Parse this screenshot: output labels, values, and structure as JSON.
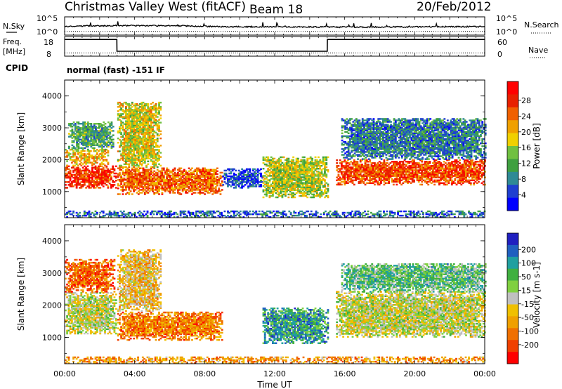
{
  "header": {
    "station": "Christmas Valley West (fitACF)",
    "beam": "Beam 18",
    "date": "20/Feb/2012"
  },
  "side_labels": {
    "nsky": "N.Sky",
    "nsearch": "N.Search",
    "freq": "Freq.",
    "freq_unit": "[MHz]",
    "nave": "Nave",
    "cpid": "CPID"
  },
  "cpid_text": "normal (fast) -151 IF",
  "noise_ticks_left": [
    "10^5",
    "10^0"
  ],
  "noise_ticks_right": [
    "10^5",
    "10^0"
  ],
  "freq_ticks_left": [
    "18",
    "8"
  ],
  "nave_ticks_right": [
    "60",
    "0"
  ],
  "chart_data": [
    {
      "type": "line",
      "name": "noise",
      "series": [
        {
          "name": "N.Sky",
          "style": "solid",
          "x": [
            0,
            3,
            6,
            9,
            12,
            15,
            18,
            21,
            24
          ],
          "values": [
            2.4,
            2.6,
            2.6,
            2.3,
            2.3,
            2.2,
            2.2,
            2.3,
            2.3
          ]
        },
        {
          "name": "N.Search",
          "style": "dotted",
          "x": [
            0,
            6,
            12,
            18,
            24
          ],
          "values": [
            1.0,
            1.0,
            1.0,
            1.0,
            1.0
          ]
        }
      ]
    },
    {
      "type": "line",
      "name": "frequency",
      "x": [
        0,
        2.98,
        2.99,
        15.0,
        15.01,
        24
      ],
      "values": [
        16.5,
        16.5,
        10.5,
        10.5,
        16.5,
        16.5
      ],
      "nave": 10,
      "ylim_left": [
        8,
        18
      ],
      "ylim_right": [
        0,
        60
      ]
    },
    {
      "type": "heatmap",
      "name": "power",
      "xlabel": "",
      "ylabel": "Slant Range [km]",
      "xlim": [
        0,
        24
      ],
      "ylim": [
        180,
        4500
      ],
      "yticks": [
        "1000",
        "2000",
        "3000",
        "4000"
      ],
      "colorbar_label": "Power [dB]",
      "colorbar_ticks": [
        "4",
        "8",
        "12",
        "16",
        "20",
        "24",
        "28"
      ],
      "colors": [
        "#0000ff",
        "#1f3fd0",
        "#2f8a95",
        "#3fa040",
        "#70c040",
        "#f0d000",
        "#f0a000",
        "#f06000",
        "#e82000",
        "#ff0000"
      ],
      "bands": [
        {
          "t0": 0.0,
          "t1": 2.9,
          "r0": 1100,
          "r1": 1800,
          "level": 0.85
        },
        {
          "t0": 0.0,
          "t1": 2.5,
          "r0": 1800,
          "r1": 2300,
          "level": 0.6
        },
        {
          "t0": 0.2,
          "t1": 2.8,
          "r0": 2300,
          "r1": 3200,
          "level": 0.35
        },
        {
          "t0": 3.0,
          "t1": 9.0,
          "r0": 900,
          "r1": 1750,
          "level": 0.75
        },
        {
          "t0": 3.0,
          "t1": 5.5,
          "r0": 1750,
          "r1": 3800,
          "level": 0.55
        },
        {
          "t0": 9.0,
          "t1": 11.3,
          "r0": 1100,
          "r1": 1700,
          "level": 0.15
        },
        {
          "t0": 11.3,
          "t1": 15.0,
          "r0": 800,
          "r1": 2100,
          "level": 0.5
        },
        {
          "t0": 15.5,
          "t1": 24.0,
          "r0": 1200,
          "r1": 2000,
          "level": 0.8
        },
        {
          "t0": 15.8,
          "t1": 24.0,
          "r0": 2000,
          "r1": 3300,
          "level": 0.25
        },
        {
          "t0": 0.0,
          "t1": 24.0,
          "r0": 180,
          "r1": 400,
          "level": 0.2
        }
      ]
    },
    {
      "type": "heatmap",
      "name": "velocity",
      "xlabel": "Time UT",
      "ylabel": "Slant Range [km]",
      "xlim": [
        0,
        24
      ],
      "ylim": [
        180,
        4500
      ],
      "xticks": [
        "00:00",
        "04:00",
        "08:00",
        "12:00",
        "16:00",
        "20:00",
        "00:00"
      ],
      "yticks": [
        "1000",
        "2000",
        "3000",
        "4000"
      ],
      "colorbar_label": "Velocity [m s-1]",
      "colorbar_ticks": [
        "200",
        "100",
        "50",
        "15",
        "-15",
        "-50",
        "-100",
        "-200"
      ],
      "colors": [
        "#2020c0",
        "#2060c0",
        "#20a0a0",
        "#40b040",
        "#80d040",
        "#c0c0c0",
        "#f0c000",
        "#f0a000",
        "#f07000",
        "#f04000",
        "#ff0000"
      ],
      "bands": [
        {
          "t0": 0.0,
          "t1": 2.9,
          "r0": 1100,
          "r1": 2400,
          "level": 0.5
        },
        {
          "t0": 0.0,
          "t1": 2.8,
          "r0": 2400,
          "r1": 3400,
          "level": 0.8
        },
        {
          "t0": 3.0,
          "t1": 9.0,
          "r0": 900,
          "r1": 1800,
          "level": 0.75
        },
        {
          "t0": 3.0,
          "t1": 5.5,
          "r0": 1800,
          "r1": 3700,
          "level": 0.6
        },
        {
          "t0": 11.3,
          "t1": 15.0,
          "r0": 800,
          "r1": 1900,
          "level": 0.25
        },
        {
          "t0": 15.5,
          "t1": 24.0,
          "r0": 1000,
          "r1": 2400,
          "level": 0.5
        },
        {
          "t0": 15.8,
          "t1": 24.0,
          "r0": 2400,
          "r1": 3300,
          "level": 0.35
        },
        {
          "t0": 0.0,
          "t1": 24.0,
          "r0": 180,
          "r1": 400,
          "level": 0.7
        }
      ]
    }
  ]
}
